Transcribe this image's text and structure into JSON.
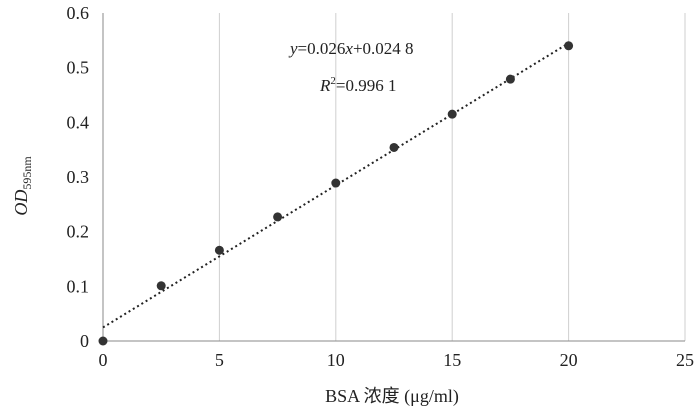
{
  "chart_data": {
    "type": "scatter",
    "xlabel": "BSA 浓度 (μg/ml)",
    "ylabel_main": "OD",
    "ylabel_sub": "595nm",
    "xlim": [
      0,
      25
    ],
    "ylim": [
      0,
      0.6
    ],
    "x_ticks": [
      "0",
      "5",
      "10",
      "15",
      "20",
      "25"
    ],
    "y_ticks": [
      "0",
      "0.1",
      "0.2",
      "0.3",
      "0.4",
      "0.5",
      "0.6"
    ],
    "grid": "vertical",
    "series": [
      {
        "x": [
          0,
          2.5,
          5,
          7.5,
          10,
          12.5,
          15,
          17.5,
          20
        ],
        "y": [
          0,
          0.101,
          0.166,
          0.227,
          0.289,
          0.354,
          0.415,
          0.479,
          0.54
        ],
        "color": "#333333"
      }
    ],
    "trendline": {
      "slope": 0.026,
      "intercept": 0.0248,
      "style": "dotted",
      "equation_y": "y",
      "equation_rest": "=0.026",
      "equation_x": "x",
      "equation_tail": "+0.024 8",
      "r2_r": "R",
      "r2_sup": "2",
      "r2_value": "=0.996 1"
    }
  }
}
